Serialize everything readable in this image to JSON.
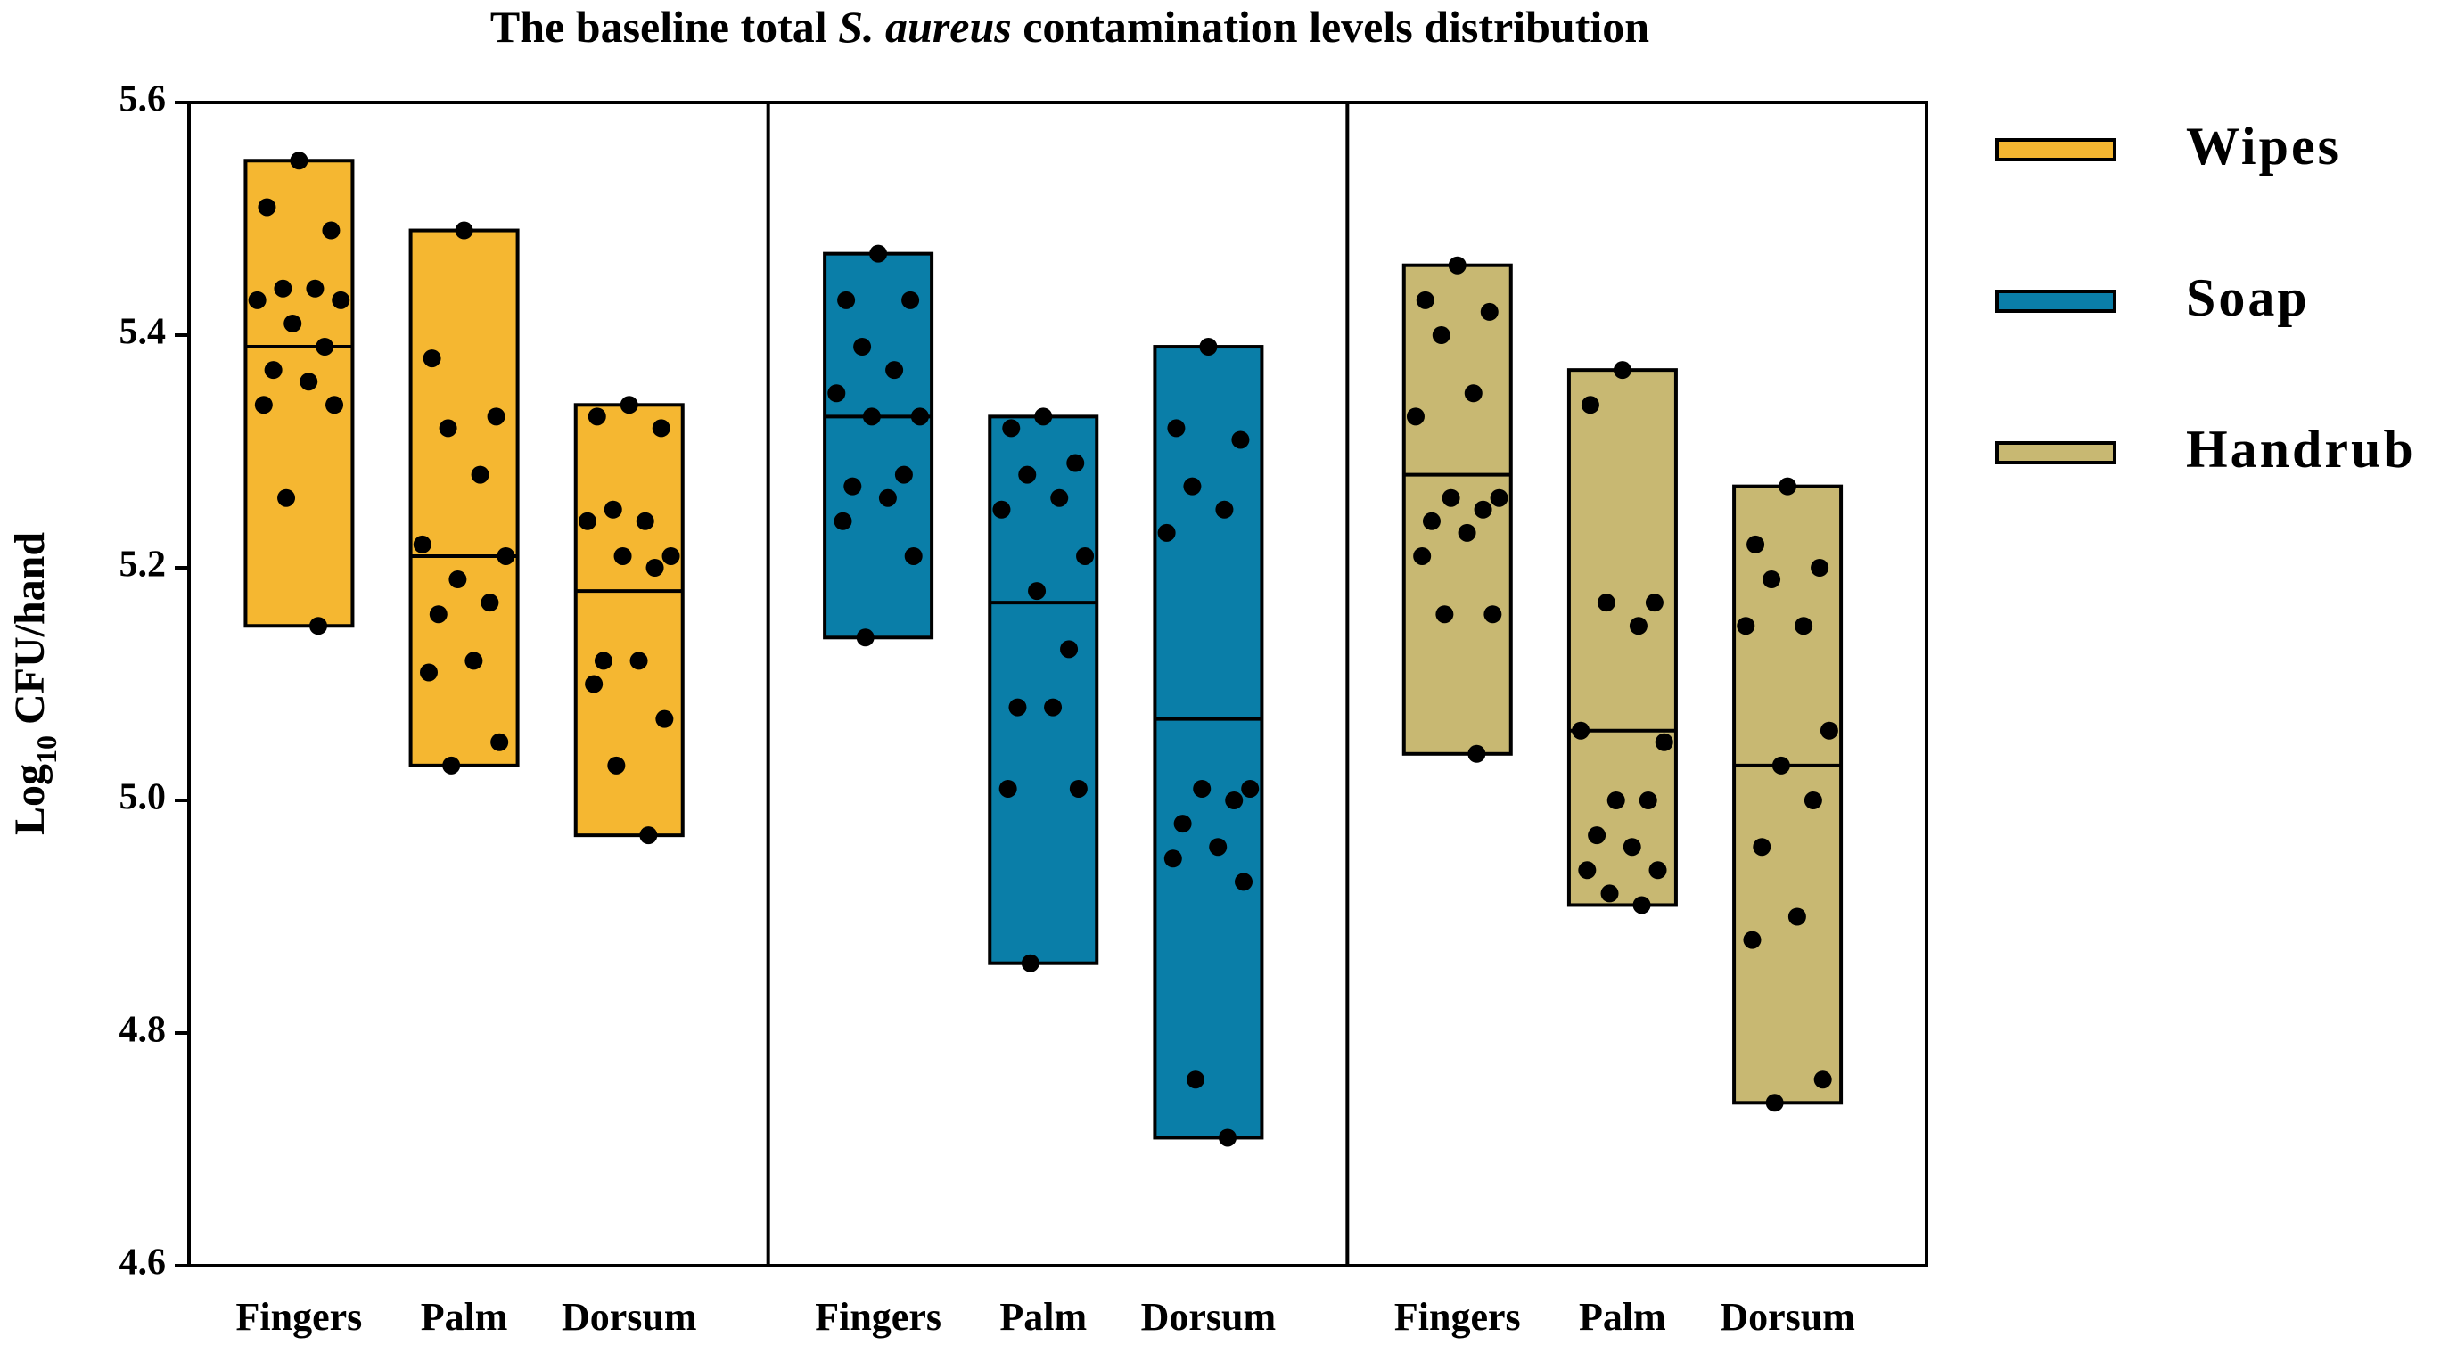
{
  "chart_data": {
    "type": "floating-bar",
    "title": [
      {
        "text": "The baseline total "
      },
      {
        "text": "S. aureus",
        "italic": true
      },
      {
        "text": " contamination levels distribution"
      }
    ],
    "y_label": [
      {
        "text": "Log"
      },
      {
        "text": "10",
        "subscript": true
      },
      {
        "text": " CFU/hand"
      }
    ],
    "ylim": [
      4.6,
      5.6
    ],
    "yticks": [
      4.6,
      4.8,
      {
        "value": 5,
        "label": "5.0"
      },
      5.2,
      5.4,
      5.6
    ],
    "categories": [
      "Fingers",
      "Palm",
      "Dorsum"
    ],
    "series": [
      {
        "name": "Wipes",
        "color": "#f5b731",
        "max": [
          5.55,
          5.49,
          5.34
        ],
        "min": [
          5.15,
          5.03,
          4.97
        ],
        "median": [
          5.39,
          5.21,
          5.18
        ],
        "points": [
          [
            5.55,
            5.51,
            5.49,
            5.44,
            5.44,
            5.43,
            5.43,
            5.41,
            5.39,
            5.37,
            5.36,
            5.34,
            5.34,
            5.26,
            5.15
          ],
          [
            5.49,
            5.38,
            5.33,
            5.32,
            5.28,
            5.22,
            5.21,
            5.19,
            5.17,
            5.16,
            5.12,
            5.11,
            5.05,
            5.03
          ],
          [
            5.34,
            5.33,
            5.32,
            5.25,
            5.24,
            5.24,
            5.21,
            5.21,
            5.2,
            5.12,
            5.12,
            5.1,
            5.07,
            5.03,
            4.97
          ]
        ]
      },
      {
        "name": "Soap",
        "color": "#0a7ea8",
        "max": [
          5.47,
          5.33,
          5.39
        ],
        "min": [
          5.14,
          4.86,
          4.71
        ],
        "median": [
          5.33,
          5.17,
          5.07
        ],
        "points": [
          [
            5.47,
            5.43,
            5.43,
            5.39,
            5.37,
            5.35,
            5.33,
            5.33,
            5.28,
            5.27,
            5.26,
            5.24,
            5.21,
            5.14
          ],
          [
            5.33,
            5.32,
            5.29,
            5.28,
            5.26,
            5.25,
            5.21,
            5.18,
            5.13,
            5.08,
            5.08,
            5.01,
            5.01,
            4.86
          ],
          [
            5.39,
            5.32,
            5.31,
            5.27,
            5.25,
            5.23,
            5.01,
            5.01,
            5.0,
            4.98,
            4.96,
            4.95,
            4.93,
            4.76,
            4.71
          ]
        ]
      },
      {
        "name": "Handrub",
        "color": "#c8b872",
        "max": [
          5.46,
          5.37,
          5.27
        ],
        "min": [
          5.04,
          4.91,
          4.74
        ],
        "median": [
          5.28,
          5.06,
          5.03
        ],
        "points": [
          [
            5.46,
            5.43,
            5.42,
            5.4,
            5.35,
            5.33,
            5.26,
            5.26,
            5.25,
            5.24,
            5.23,
            5.21,
            5.16,
            5.16,
            5.04
          ],
          [
            5.37,
            5.34,
            5.17,
            5.17,
            5.15,
            5.06,
            5.05,
            5.0,
            5.0,
            4.97,
            4.96,
            4.94,
            4.94,
            4.92,
            4.91
          ],
          [
            5.27,
            5.22,
            5.2,
            5.19,
            5.15,
            5.15,
            5.06,
            5.03,
            5.0,
            4.96,
            4.9,
            4.88,
            4.76,
            4.74
          ]
        ]
      }
    ]
  }
}
